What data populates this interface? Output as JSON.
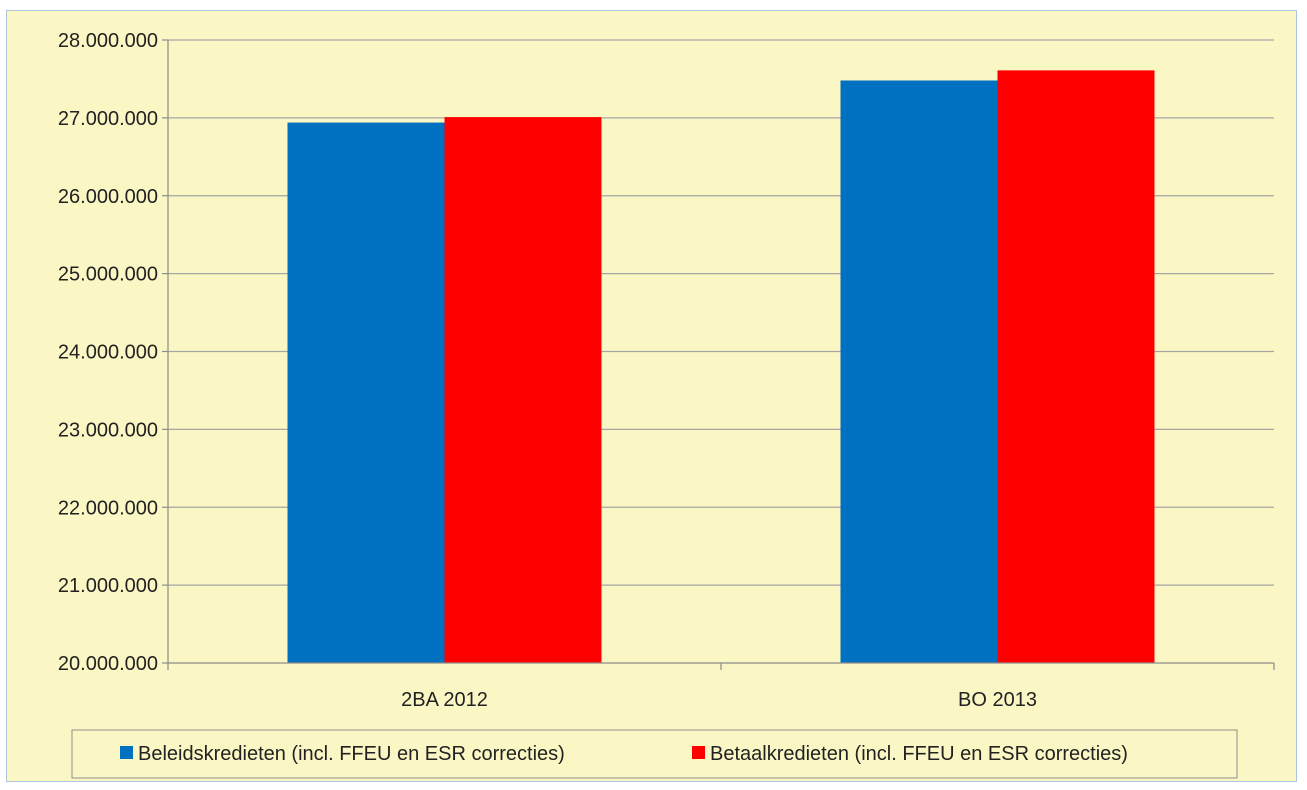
{
  "chart_data": {
    "type": "bar",
    "categories": [
      "2BA 2012",
      "BO 2013"
    ],
    "series": [
      {
        "name": "Beleidskredieten (incl. FFEU en ESR correcties)",
        "values": [
          26940000,
          27480000
        ],
        "color": "#0070c0"
      },
      {
        "name": "Betaalkredieten (incl. FFEU en ESR correcties)",
        "values": [
          27010000,
          27610000
        ],
        "color": "#ff0000"
      }
    ],
    "ylim": [
      20000000,
      28000000
    ],
    "yticks": [
      20000000,
      21000000,
      22000000,
      23000000,
      24000000,
      25000000,
      26000000,
      27000000,
      28000000
    ],
    "ytick_labels": [
      "20.000.000",
      "21.000.000",
      "22.000.000",
      "23.000.000",
      "24.000.000",
      "25.000.000",
      "26.000.000",
      "27.000.000",
      "28.000.000"
    ],
    "grid": true,
    "legend": "bottom",
    "gridline_color": "#a6a6a6",
    "background_color": "#fbf7c4"
  }
}
